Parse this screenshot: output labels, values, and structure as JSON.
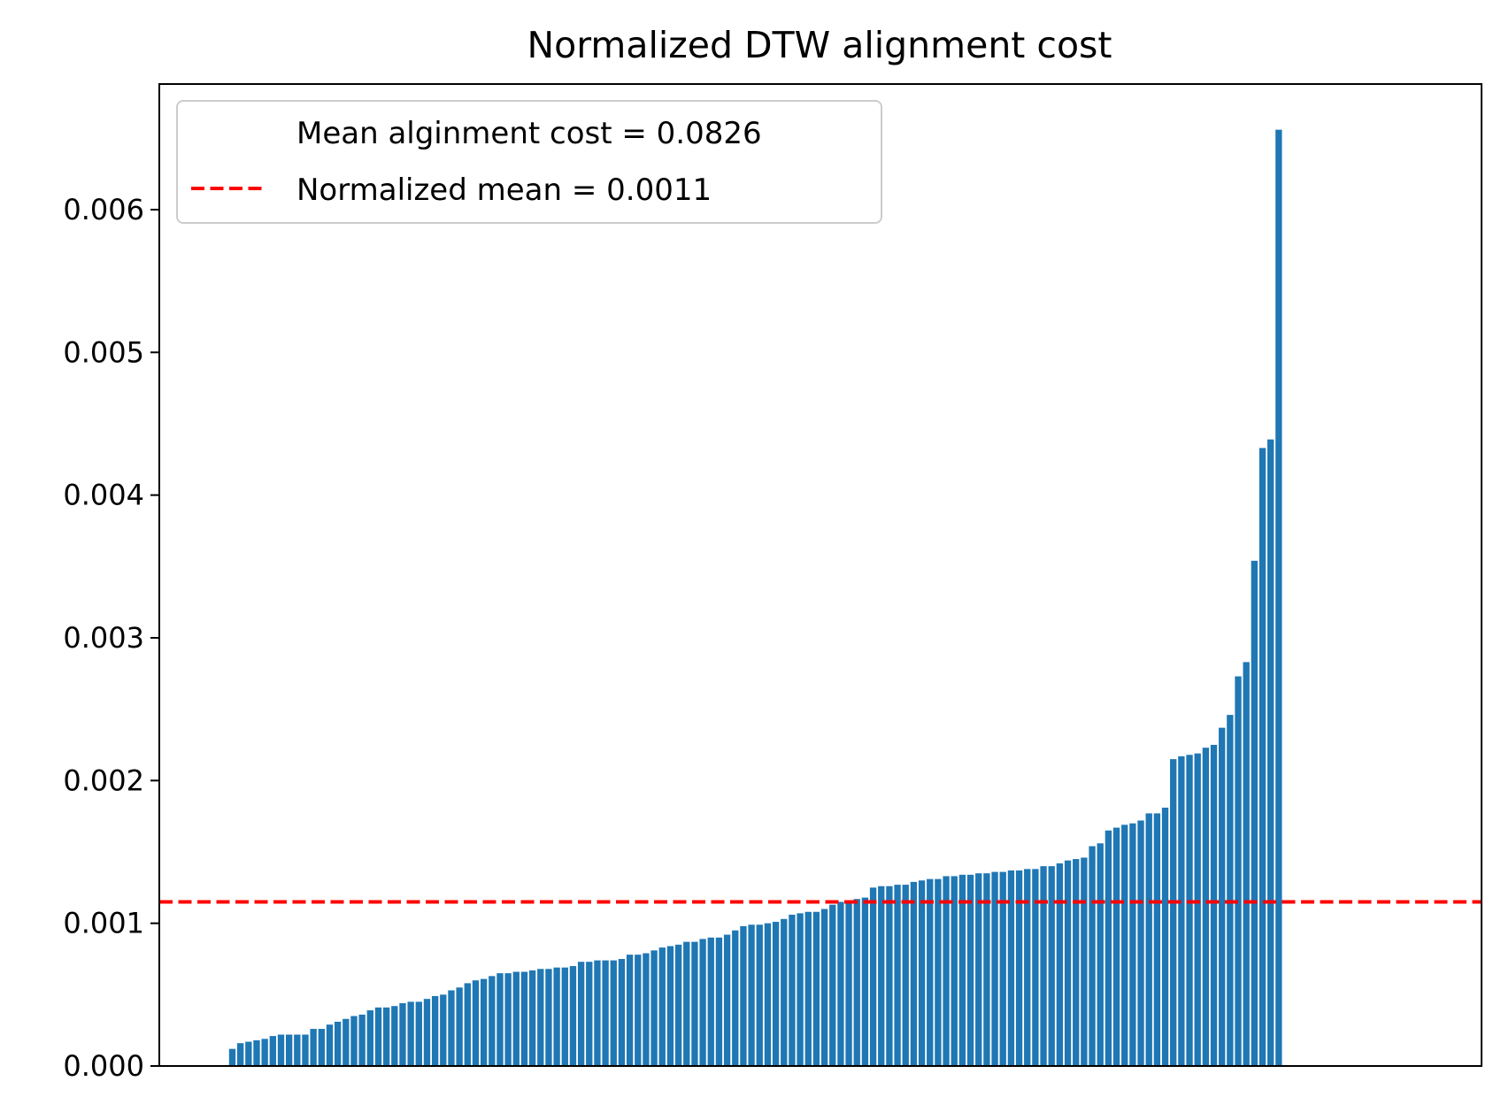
{
  "chart_data": {
    "type": "bar",
    "title": "Normalized DTW alignment cost",
    "xlabel": "",
    "ylabel": "",
    "ylim": [
      0,
      0.00688
    ],
    "xlim": [
      -9,
      154
    ],
    "yticks": [
      "0.000",
      "0.001",
      "0.002",
      "0.003",
      "0.004",
      "0.005",
      "0.006"
    ],
    "bar_color": "#1f77b4",
    "grid": false,
    "legend": {
      "placement": "upper-left",
      "entries": [
        {
          "label": "Mean alginment cost = 0.0826",
          "marker": "none"
        },
        {
          "label": "Normalized mean = 0.0011",
          "marker": "dashed-line",
          "color": "#ff0000"
        }
      ]
    },
    "mean_line": {
      "y": 0.00115,
      "color": "#ff0000",
      "style": "dashed"
    },
    "values": [
      0.00012,
      0.00016,
      0.00017,
      0.00018,
      0.00019,
      0.00021,
      0.00022,
      0.00022,
      0.00022,
      0.00022,
      0.00026,
      0.00026,
      0.00029,
      0.00031,
      0.00033,
      0.00035,
      0.00036,
      0.00039,
      0.00041,
      0.00041,
      0.00042,
      0.00044,
      0.00045,
      0.00045,
      0.00047,
      0.00049,
      0.0005,
      0.00053,
      0.00055,
      0.00058,
      0.0006,
      0.00061,
      0.00063,
      0.00065,
      0.00065,
      0.00066,
      0.00066,
      0.00067,
      0.00068,
      0.00068,
      0.00069,
      0.00069,
      0.0007,
      0.00073,
      0.00073,
      0.00074,
      0.00074,
      0.00074,
      0.00075,
      0.00078,
      0.00078,
      0.00079,
      0.00081,
      0.00083,
      0.00084,
      0.00085,
      0.00087,
      0.00087,
      0.00089,
      0.0009,
      0.0009,
      0.00092,
      0.00095,
      0.00098,
      0.00099,
      0.00099,
      0.001,
      0.00101,
      0.00103,
      0.00106,
      0.00107,
      0.00108,
      0.00108,
      0.0011,
      0.00113,
      0.00115,
      0.00116,
      0.00117,
      0.00118,
      0.00125,
      0.00126,
      0.00126,
      0.00127,
      0.00127,
      0.00129,
      0.0013,
      0.00131,
      0.00131,
      0.00133,
      0.00133,
      0.00134,
      0.00134,
      0.00135,
      0.00135,
      0.00136,
      0.00136,
      0.00137,
      0.00137,
      0.00138,
      0.00138,
      0.0014,
      0.0014,
      0.00142,
      0.00144,
      0.00145,
      0.00146,
      0.00154,
      0.00156,
      0.00165,
      0.00167,
      0.00169,
      0.0017,
      0.00172,
      0.00177,
      0.00177,
      0.00181,
      0.00215,
      0.00217,
      0.00218,
      0.00219,
      0.00223,
      0.00225,
      0.00237,
      0.00246,
      0.00273,
      0.00283,
      0.00354,
      0.00433,
      0.00439,
      0.00656
    ]
  }
}
